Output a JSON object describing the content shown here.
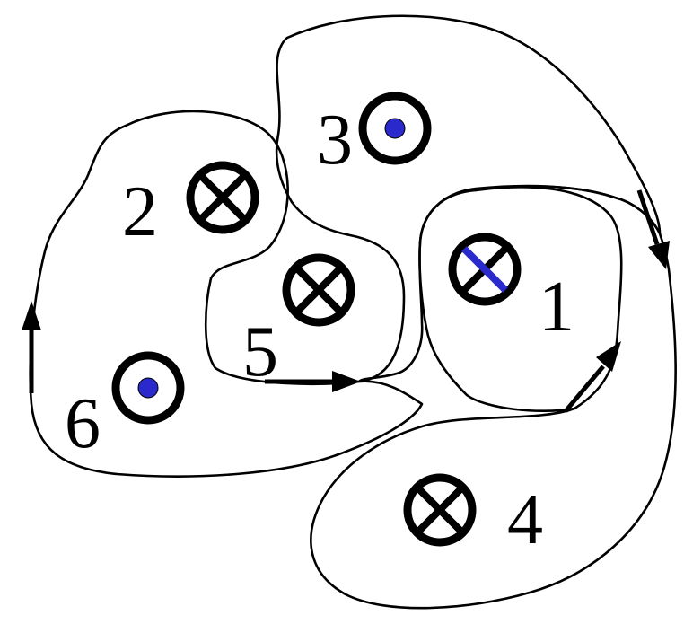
{
  "wires": [
    {
      "id": "wire-1",
      "label": "1",
      "direction": "into-page",
      "stripe": "#2a2acc"
    },
    {
      "id": "wire-2",
      "label": "2",
      "direction": "into-page"
    },
    {
      "id": "wire-3",
      "label": "3",
      "direction": "out-of-page",
      "dot_color": "#2a2acc"
    },
    {
      "id": "wire-4",
      "label": "4",
      "direction": "into-page"
    },
    {
      "id": "wire-5",
      "label": "5",
      "direction": "into-page"
    },
    {
      "id": "wire-6",
      "label": "6",
      "direction": "out-of-page",
      "dot_color": "#2a2acc"
    }
  ],
  "loops": [
    {
      "id": "loop-left",
      "encloses": [
        "2",
        "6"
      ],
      "arrow": "up"
    },
    {
      "id": "loop-middle",
      "encloses": [
        "3",
        "5"
      ],
      "arrow": "right"
    },
    {
      "id": "loop-right",
      "encloses": [
        "1",
        "4"
      ],
      "arrows": [
        "down",
        "up-right"
      ]
    }
  ],
  "colors": {
    "line": "#000000",
    "accent": "#2a2acc",
    "background": "#ffffff"
  }
}
